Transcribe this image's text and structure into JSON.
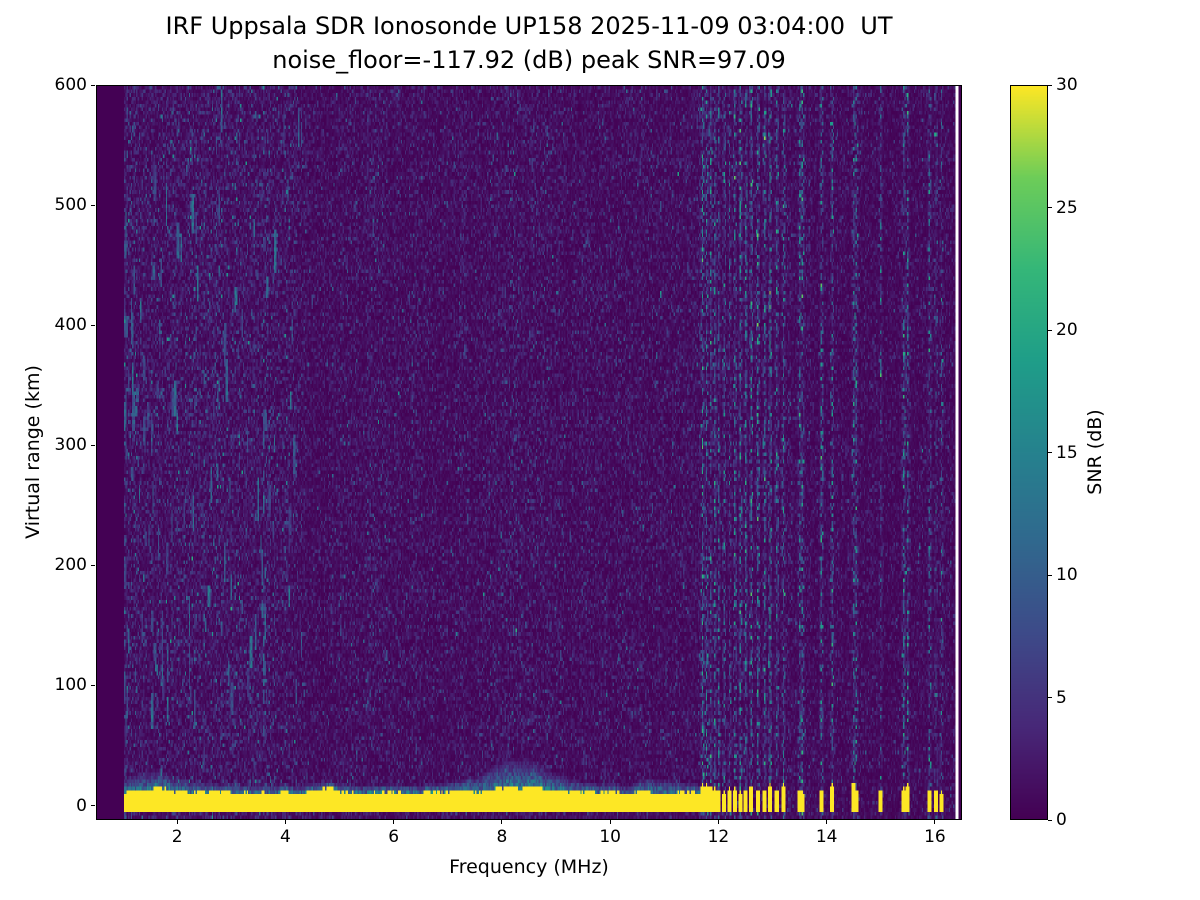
{
  "figure": {
    "background": "#ffffff"
  },
  "chart_data": {
    "type": "heatmap",
    "title": "IRF Uppsala SDR Ionosonde UP158 2025-11-09 03:04:00  UT",
    "subtitle": "noise_floor=-117.92 (dB) peak SNR=97.09",
    "xlabel": "Frequency (MHz)",
    "ylabel": "Virtual range (km)",
    "xlim": [
      0.5,
      16.5
    ],
    "ylim": [
      -12,
      600
    ],
    "x_ticks": [
      2,
      4,
      6,
      8,
      10,
      12,
      14,
      16
    ],
    "y_ticks": [
      0,
      100,
      200,
      300,
      400,
      500,
      600
    ],
    "grid": false,
    "colorbar": {
      "label": "SNR (dB)",
      "min": 0,
      "max": 30,
      "ticks": [
        0,
        5,
        10,
        15,
        20,
        25,
        30
      ]
    },
    "colormap": "viridis",
    "colormap_stops": [
      [
        0.0,
        "#440154"
      ],
      [
        0.125,
        "#482878"
      ],
      [
        0.25,
        "#3e4a89"
      ],
      [
        0.375,
        "#31688e"
      ],
      [
        0.5,
        "#26828e"
      ],
      [
        0.625,
        "#1f9e89"
      ],
      [
        0.75,
        "#35b779"
      ],
      [
        0.875,
        "#6dcd59"
      ],
      [
        1.0,
        "#fde725"
      ]
    ],
    "noise_floor_db": -117.92,
    "peak_snr_db": 97.09,
    "features": {
      "data_freq_range_mhz": [
        1.0,
        16.45
      ],
      "ground_band": {
        "freq_range": [
          1.0,
          11.72
        ],
        "range_km": [
          -5,
          14
        ],
        "snr_db": 30
      },
      "halo_bumps_mhz": [
        1.5,
        4.75,
        8.3,
        10.9
      ],
      "low_freq_echo_streaks": {
        "freq_range": [
          1.0,
          4.3
        ],
        "range_km": [
          60,
          580
        ],
        "snr_db": [
          7,
          16
        ]
      },
      "rfi_stripe_freqs_mhz": [
        11.72,
        11.79,
        11.86,
        11.94,
        12.02,
        12.11,
        12.2,
        12.3,
        12.4,
        12.51,
        12.62,
        12.73,
        12.85,
        12.97,
        13.09,
        13.21,
        13.5,
        13.56,
        13.9,
        14.1,
        14.5,
        14.56,
        15.0,
        15.44,
        15.5,
        15.9,
        16.04,
        16.14
      ],
      "white_masked_column_mhz": 16.42
    },
    "render_seed": 42
  }
}
